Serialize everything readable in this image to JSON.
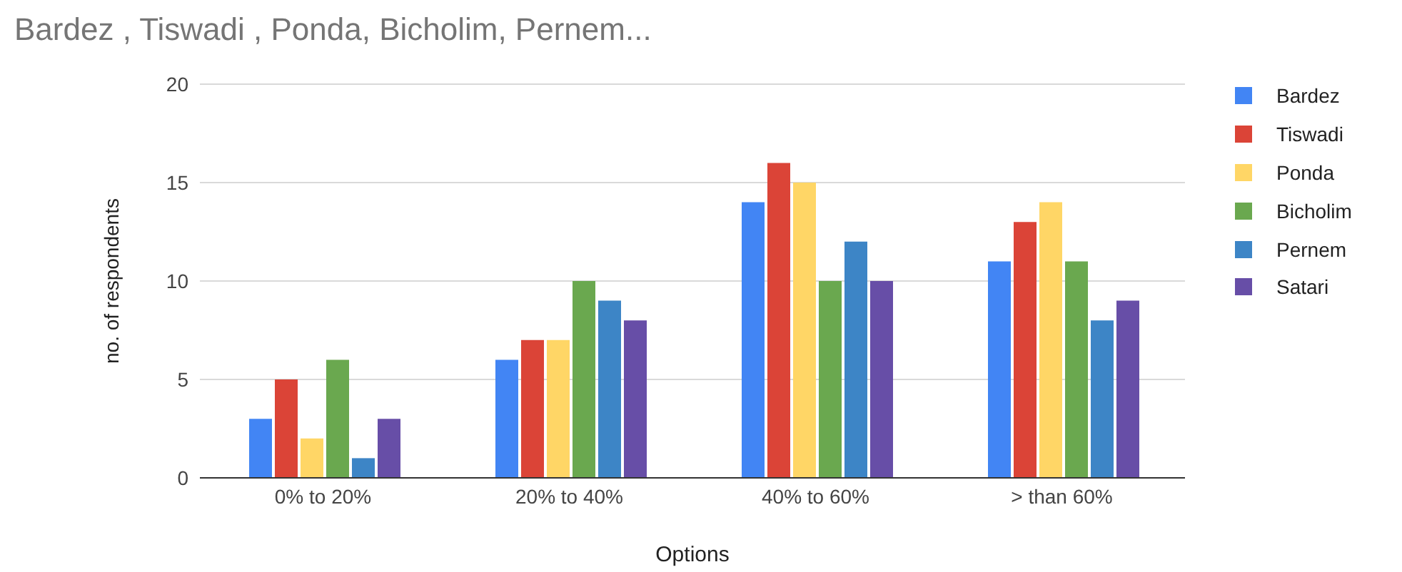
{
  "chart_data": {
    "type": "bar",
    "title": "Bardez , Tiswadi , Ponda, Bicholim, Pernem...",
    "xlabel": "Options",
    "ylabel": "no. of respondents",
    "categories": [
      "0% to 20%",
      "20% to 40%",
      "40% to 60%",
      "> than 60%"
    ],
    "series": [
      {
        "name": "Bardez",
        "color": "#4285f4",
        "values": [
          3,
          6,
          14,
          11
        ]
      },
      {
        "name": "Tiswadi",
        "color": "#db4437",
        "values": [
          5,
          7,
          16,
          13
        ]
      },
      {
        "name": "Ponda",
        "color": "#ffd666",
        "values": [
          2,
          7,
          15,
          14
        ]
      },
      {
        "name": "Bicholim",
        "color": "#6aa84f",
        "values": [
          6,
          10,
          10,
          11
        ]
      },
      {
        "name": "Pernem",
        "color": "#3d85c6",
        "values": [
          1,
          9,
          12,
          8
        ]
      },
      {
        "name": "Satari",
        "color": "#674ea7",
        "values": [
          3,
          8,
          10,
          9
        ]
      }
    ],
    "ylim": [
      0,
      20
    ],
    "yticks": [
      0,
      5,
      10,
      15,
      20
    ],
    "grid": "y",
    "legend": "right"
  }
}
